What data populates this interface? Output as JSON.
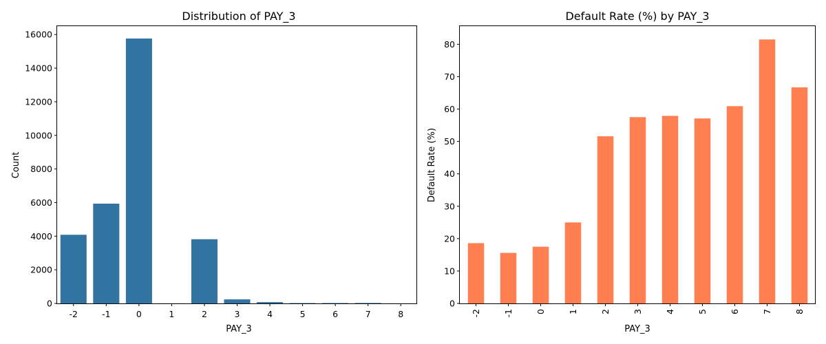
{
  "chart_data": [
    {
      "type": "bar",
      "title": "Distribution of PAY_3",
      "xlabel": "PAY_3",
      "ylabel": "Count",
      "categories": [
        "-2",
        "-1",
        "0",
        "1",
        "2",
        "3",
        "4",
        "5",
        "6",
        "7",
        "8"
      ],
      "values": [
        4085,
        5938,
        15764,
        4,
        3819,
        240,
        76,
        21,
        23,
        27,
        3
      ],
      "ylim": [
        0,
        16500
      ],
      "yticks": [
        0,
        2000,
        4000,
        6000,
        8000,
        10000,
        12000,
        14000,
        16000
      ],
      "ytick_labels": [
        "0",
        "2000",
        "4000",
        "6000",
        "8000",
        "10000",
        "12000",
        "14000",
        "16000"
      ],
      "bar_color": "#3274a1",
      "xtick_rotation": 0,
      "grid": false,
      "legend": "none"
    },
    {
      "type": "bar",
      "title": "Default Rate (%) by PAY_3",
      "xlabel": "PAY_3",
      "ylabel": "Default Rate (%)",
      "categories": [
        "-2",
        "-1",
        "0",
        "1",
        "2",
        "3",
        "4",
        "5",
        "6",
        "7",
        "8"
      ],
      "values": [
        18.6,
        15.6,
        17.5,
        25.0,
        51.6,
        57.5,
        57.9,
        57.1,
        60.9,
        81.5,
        66.7
      ],
      "ylim": [
        0,
        85.6
      ],
      "yticks": [
        0,
        10,
        20,
        30,
        40,
        50,
        60,
        70,
        80
      ],
      "ytick_labels": [
        "0",
        "10",
        "20",
        "30",
        "40",
        "50",
        "60",
        "70",
        "80"
      ],
      "bar_color": "#ff7f50",
      "xtick_rotation": -90,
      "grid": false,
      "legend": "none"
    }
  ]
}
